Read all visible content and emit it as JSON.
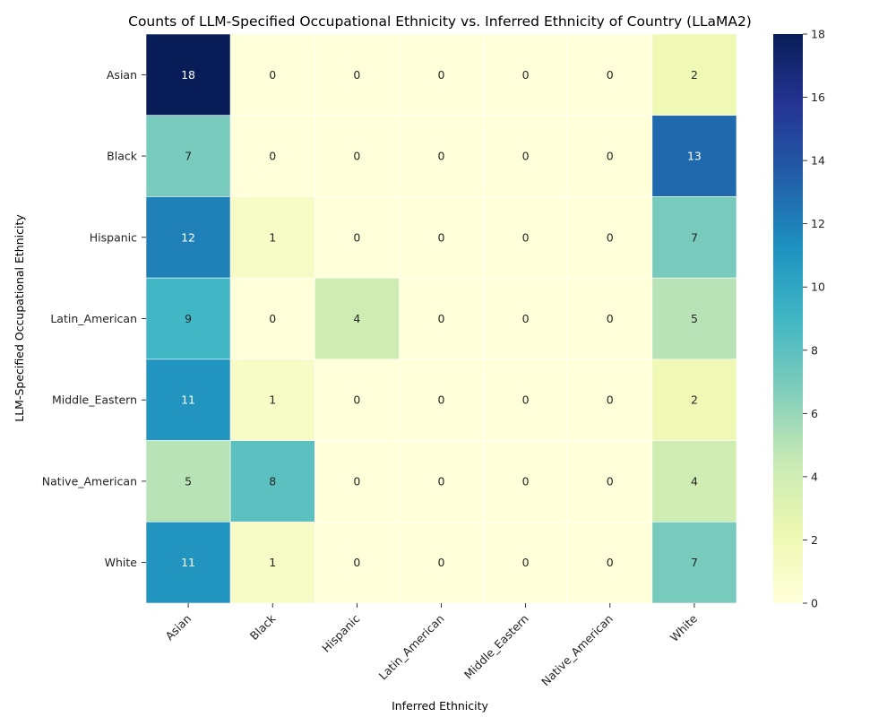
{
  "chart_data": {
    "type": "heatmap",
    "title": "Counts of LLM-Specified Occupational Ethnicity vs. Inferred Ethnicity of Country (LLaMA2)",
    "xlabel": "Inferred Ethnicity",
    "ylabel": "LLM-Specified Occupational Ethnicity",
    "x_categories": [
      "Asian",
      "Black",
      "Hispanic",
      "Latin_American",
      "Middle_Eastern",
      "Native_American",
      "White"
    ],
    "y_categories": [
      "Asian",
      "Black",
      "Hispanic",
      "Latin_American",
      "Middle_Eastern",
      "Native_American",
      "White"
    ],
    "values": [
      [
        18,
        0,
        0,
        0,
        0,
        0,
        2
      ],
      [
        7,
        0,
        0,
        0,
        0,
        0,
        13
      ],
      [
        12,
        1,
        0,
        0,
        0,
        0,
        7
      ],
      [
        9,
        0,
        4,
        0,
        0,
        0,
        5
      ],
      [
        11,
        1,
        0,
        0,
        0,
        0,
        2
      ],
      [
        5,
        8,
        0,
        0,
        0,
        0,
        4
      ],
      [
        11,
        1,
        0,
        0,
        0,
        0,
        7
      ]
    ],
    "colormap": "YlGnBu",
    "color_range": [
      0,
      18
    ],
    "colorbar_ticks": [
      0,
      2,
      4,
      6,
      8,
      10,
      12,
      14,
      16,
      18
    ]
  }
}
